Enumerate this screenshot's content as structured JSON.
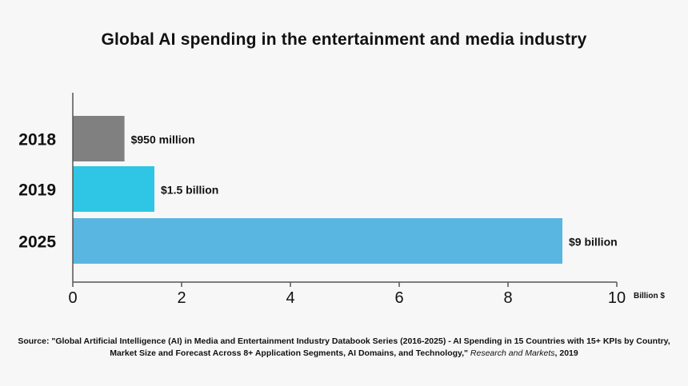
{
  "chart_data": {
    "type": "bar",
    "orientation": "horizontal",
    "title": "Global AI spending in the entertainment and media industry",
    "categories": [
      "2018",
      "2019",
      "2025"
    ],
    "values": [
      0.95,
      1.5,
      9
    ],
    "data_labels": [
      "$950 million",
      "$1.5 billion",
      "$9 billion"
    ],
    "colors": [
      "#808080",
      "#2ec6e4",
      "#58b6e0"
    ],
    "xlabel": "Billion $",
    "xlim": [
      0,
      10
    ],
    "xticks": [
      "0",
      "2",
      "4",
      "6",
      "8",
      "10"
    ],
    "grid": false
  },
  "source": {
    "text": "Source: \"Global Artificial Intelligence (AI) in Media and Entertainment Industry Databook Series (2016-2025) - AI Spending in 15 Countries with 15+ KPIs by Country, Market Size and Forecast Across 8+ Application Segments, AI Domains, and Technology,\"",
    "publisher": "Research and Markets",
    "year": ", 2019"
  }
}
